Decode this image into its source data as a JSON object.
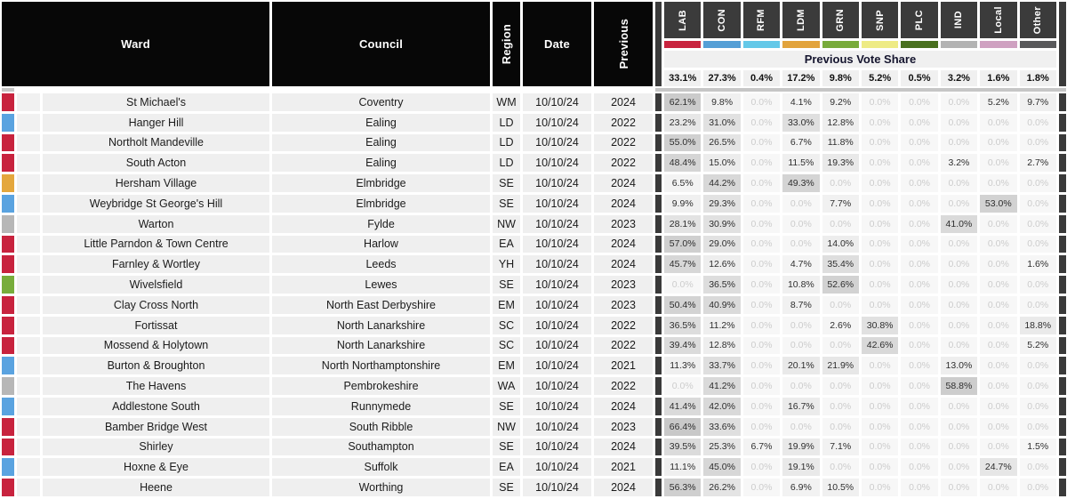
{
  "table": {
    "columns": {
      "ward": "Ward",
      "council": "Council",
      "region": "Region",
      "date": "Date",
      "previous": "Previous"
    },
    "vote_share_header": "Previous Vote Share",
    "parties": [
      {
        "code": "LAB",
        "color": "#c8233e",
        "overall": "33.1%"
      },
      {
        "code": "CON",
        "color": "#559fd6",
        "overall": "27.3%"
      },
      {
        "code": "RFM",
        "color": "#64c8e8",
        "overall": "0.4%"
      },
      {
        "code": "LDM",
        "color": "#e2a33c",
        "overall": "17.2%"
      },
      {
        "code": "GRN",
        "color": "#78ab3b",
        "overall": "9.8%"
      },
      {
        "code": "SNP",
        "color": "#eeeb85",
        "overall": "5.2%"
      },
      {
        "code": "PLC",
        "color": "#49701f",
        "overall": "0.5%"
      },
      {
        "code": "IND",
        "color": "#b3b3b3",
        "overall": "3.2%"
      },
      {
        "code": "Local",
        "color": "#cfa1c1",
        "overall": "1.6%"
      },
      {
        "code": "Other",
        "color": "#59595b",
        "overall": "1.8%"
      }
    ],
    "rows": [
      {
        "ward": "St Michael's",
        "council": "Coventry",
        "region": "WM",
        "date": "10/10/24",
        "previous": "2024",
        "indicator": "#c8233e",
        "shares": [
          62.1,
          9.8,
          0.0,
          4.1,
          9.2,
          0.0,
          0.0,
          0.0,
          5.2,
          9.7
        ]
      },
      {
        "ward": "Hanger Hill",
        "council": "Ealing",
        "region": "LD",
        "date": "10/10/24",
        "previous": "2022",
        "indicator": "#5aa3e0",
        "shares": [
          23.2,
          31.0,
          0.0,
          33.0,
          12.8,
          0.0,
          0.0,
          0.0,
          0.0,
          0.0
        ]
      },
      {
        "ward": "Northolt Mandeville",
        "council": "Ealing",
        "region": "LD",
        "date": "10/10/24",
        "previous": "2022",
        "indicator": "#c8233e",
        "shares": [
          55.0,
          26.5,
          0.0,
          6.7,
          11.8,
          0.0,
          0.0,
          0.0,
          0.0,
          0.0
        ]
      },
      {
        "ward": "South Acton",
        "council": "Ealing",
        "region": "LD",
        "date": "10/10/24",
        "previous": "2022",
        "indicator": "#c8233e",
        "shares": [
          48.4,
          15.0,
          0.0,
          11.5,
          19.3,
          0.0,
          0.0,
          3.2,
          0.0,
          2.7
        ]
      },
      {
        "ward": "Hersham Village",
        "council": "Elmbridge",
        "region": "SE",
        "date": "10/10/24",
        "previous": "2024",
        "indicator": "#e4a73d",
        "shares": [
          6.5,
          44.2,
          0.0,
          49.3,
          0.0,
          0.0,
          0.0,
          0.0,
          0.0,
          0.0
        ]
      },
      {
        "ward": "Weybridge St George's Hill",
        "council": "Elmbridge",
        "region": "SE",
        "date": "10/10/24",
        "previous": "2024",
        "indicator": "#5aa3e0",
        "shares": [
          9.9,
          29.3,
          0.0,
          0.0,
          7.7,
          0.0,
          0.0,
          0.0,
          53.0,
          0.0
        ]
      },
      {
        "ward": "Warton",
        "council": "Fylde",
        "region": "NW",
        "date": "10/10/24",
        "previous": "2023",
        "indicator": "#b7b7b7",
        "shares": [
          28.1,
          30.9,
          0.0,
          0.0,
          0.0,
          0.0,
          0.0,
          41.0,
          0.0,
          0.0
        ]
      },
      {
        "ward": "Little Parndon & Town Centre",
        "council": "Harlow",
        "region": "EA",
        "date": "10/10/24",
        "previous": "2024",
        "indicator": "#c8233e",
        "shares": [
          57.0,
          29.0,
          0.0,
          0.0,
          14.0,
          0.0,
          0.0,
          0.0,
          0.0,
          0.0
        ]
      },
      {
        "ward": "Farnley & Wortley",
        "council": "Leeds",
        "region": "YH",
        "date": "10/10/24",
        "previous": "2024",
        "indicator": "#c8233e",
        "shares": [
          45.7,
          12.6,
          0.0,
          4.7,
          35.4,
          0.0,
          0.0,
          0.0,
          0.0,
          1.6
        ]
      },
      {
        "ward": "Wivelsfield",
        "council": "Lewes",
        "region": "SE",
        "date": "10/10/24",
        "previous": "2023",
        "indicator": "#78ad3b",
        "shares": [
          0.0,
          36.5,
          0.0,
          10.8,
          52.6,
          0.0,
          0.0,
          0.0,
          0.0,
          0.0
        ]
      },
      {
        "ward": "Clay Cross North",
        "council": "North East Derbyshire",
        "region": "EM",
        "date": "10/10/24",
        "previous": "2023",
        "indicator": "#c8233e",
        "shares": [
          50.4,
          40.9,
          0.0,
          8.7,
          0.0,
          0.0,
          0.0,
          0.0,
          0.0,
          0.0
        ]
      },
      {
        "ward": "Fortissat",
        "council": "North Lanarkshire",
        "region": "SC",
        "date": "10/10/24",
        "previous": "2022",
        "indicator": "#c8233e",
        "shares": [
          36.5,
          11.2,
          0.0,
          0.0,
          2.6,
          30.8,
          0.0,
          0.0,
          0.0,
          18.8
        ]
      },
      {
        "ward": "Mossend & Holytown",
        "council": "North Lanarkshire",
        "region": "SC",
        "date": "10/10/24",
        "previous": "2022",
        "indicator": "#c8233e",
        "shares": [
          39.4,
          12.8,
          0.0,
          0.0,
          0.0,
          42.6,
          0.0,
          0.0,
          0.0,
          5.2
        ]
      },
      {
        "ward": "Burton & Broughton",
        "council": "North Northamptonshire",
        "region": "EM",
        "date": "10/10/24",
        "previous": "2021",
        "indicator": "#5aa3e0",
        "shares": [
          11.3,
          33.7,
          0.0,
          20.1,
          21.9,
          0.0,
          0.0,
          13.0,
          0.0,
          0.0
        ]
      },
      {
        "ward": "The Havens",
        "council": "Pembrokeshire",
        "region": "WA",
        "date": "10/10/24",
        "previous": "2022",
        "indicator": "#b7b7b7",
        "shares": [
          0.0,
          41.2,
          0.0,
          0.0,
          0.0,
          0.0,
          0.0,
          58.8,
          0.0,
          0.0
        ]
      },
      {
        "ward": "Addlestone South",
        "council": "Runnymede",
        "region": "SE",
        "date": "10/10/24",
        "previous": "2024",
        "indicator": "#5aa3e0",
        "shares": [
          41.4,
          42.0,
          0.0,
          16.7,
          0.0,
          0.0,
          0.0,
          0.0,
          0.0,
          0.0
        ]
      },
      {
        "ward": "Bamber Bridge West",
        "council": "South Ribble",
        "region": "NW",
        "date": "10/10/24",
        "previous": "2023",
        "indicator": "#c8233e",
        "shares": [
          66.4,
          33.6,
          0.0,
          0.0,
          0.0,
          0.0,
          0.0,
          0.0,
          0.0,
          0.0
        ]
      },
      {
        "ward": "Shirley",
        "council": "Southampton",
        "region": "SE",
        "date": "10/10/24",
        "previous": "2024",
        "indicator": "#c8233e",
        "shares": [
          39.5,
          25.3,
          6.7,
          19.9,
          7.1,
          0.0,
          0.0,
          0.0,
          0.0,
          1.5
        ]
      },
      {
        "ward": "Hoxne & Eye",
        "council": "Suffolk",
        "region": "EA",
        "date": "10/10/24",
        "previous": "2021",
        "indicator": "#5aa3e0",
        "shares": [
          11.1,
          45.0,
          0.0,
          19.1,
          0.0,
          0.0,
          0.0,
          0.0,
          24.7,
          0.0
        ]
      },
      {
        "ward": "Heene",
        "council": "Worthing",
        "region": "SE",
        "date": "10/10/24",
        "previous": "2024",
        "indicator": "#c8233e",
        "shares": [
          56.3,
          26.2,
          0.0,
          6.9,
          10.5,
          0.0,
          0.0,
          0.0,
          0.0,
          0.0
        ]
      }
    ]
  }
}
